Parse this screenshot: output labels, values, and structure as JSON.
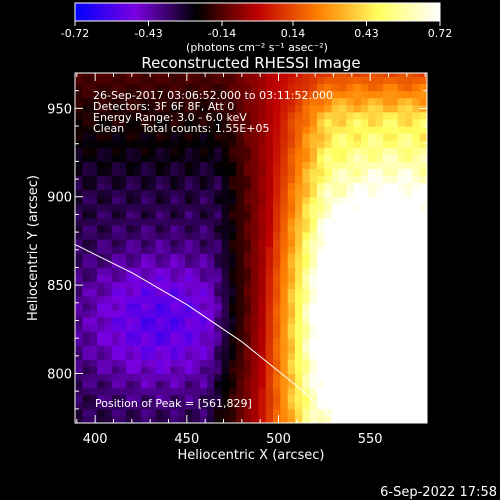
{
  "chart_data": {
    "type": "heatmap",
    "title": "Reconstructed RHESSI Image",
    "xlabel": "Heliocentric X (arcsec)",
    "ylabel": "Heliocentric Y (arcsec)",
    "xlim": [
      389,
      581
    ],
    "ylim": [
      772,
      970
    ],
    "xticks": [
      400,
      450,
      500,
      550
    ],
    "yticks": [
      800,
      850,
      900,
      950
    ],
    "colorbar": {
      "min": -0.72,
      "max": 0.72,
      "ticks": [
        "-0.72",
        "-0.43",
        "-0.14",
        "0.14",
        "0.43",
        "0.72"
      ],
      "unit_label": "(photons cm⁻² s⁻¹ asec⁻²)",
      "colors": [
        "#0000ff",
        "#7a00e0",
        "#000000",
        "#c00000",
        "#ff8000",
        "#ffff60",
        "#ffffff"
      ]
    },
    "info_lines": [
      "26-Sep-2017 03:06:52.000 to 03:11:52.000",
      "Detectors: 3F 6F 8F, Att 0",
      "Energy Range: 3.0 - 6.0 keV",
      "Clean     Total counts: 1.55E+05"
    ],
    "peak_label": "Position of Peak = [561,829]",
    "peak": [
      561,
      829
    ],
    "limb": [
      [
        389,
        873
      ],
      [
        420,
        857
      ],
      [
        450,
        839
      ],
      [
        480,
        818
      ],
      [
        510,
        793
      ],
      [
        540,
        765
      ],
      [
        563,
        741
      ]
    ]
  },
  "footer": {
    "timestamp": "6-Sep-2022 17:58"
  }
}
